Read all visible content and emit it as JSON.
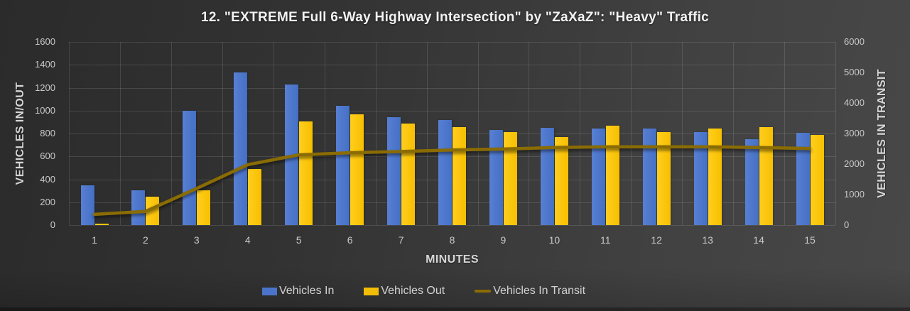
{
  "title": "12. \"EXTREME Full 6-Way Highway Intersection\" by \"ZaXaZ\": \"Heavy\" Traffic",
  "chart_data": {
    "type": "bar",
    "subtype": "combo-bar-line",
    "categories": [
      "1",
      "2",
      "3",
      "4",
      "5",
      "6",
      "7",
      "8",
      "9",
      "10",
      "11",
      "12",
      "13",
      "14",
      "15"
    ],
    "series": [
      {
        "name": "Vehicles In",
        "type": "bar",
        "axis": "left",
        "color": "#4a76cc",
        "values": [
          345,
          305,
          1000,
          1335,
          1230,
          1040,
          940,
          920,
          830,
          850,
          845,
          845,
          810,
          750,
          805
        ]
      },
      {
        "name": "Vehicles Out",
        "type": "bar",
        "axis": "left",
        "color": "#fcc605",
        "values": [
          10,
          250,
          305,
          490,
          905,
          965,
          890,
          855,
          815,
          770,
          870,
          810,
          845,
          855,
          785
        ]
      },
      {
        "name": "Vehicles In Transit",
        "type": "line",
        "axis": "right",
        "color": "#8a6c04",
        "values": [
          350,
          450,
          1200,
          1980,
          2300,
          2370,
          2410,
          2460,
          2490,
          2540,
          2565,
          2565,
          2565,
          2540,
          2510
        ]
      }
    ],
    "xlabel": "MINUTES",
    "ylabel_left": "VEHICLES IN/OUT",
    "ylabel_right": "VEHICLES IN TRANSIT",
    "ylim_left": [
      0,
      1600
    ],
    "ylim_right": [
      0,
      6000
    ],
    "left_ticks": [
      0,
      200,
      400,
      600,
      800,
      1000,
      1200,
      1400,
      1600
    ],
    "right_ticks": [
      0,
      1000,
      2000,
      3000,
      4000,
      5000,
      6000
    ],
    "grid": true,
    "legend_position": "bottom"
  },
  "colors": {
    "background_dark": "#2b2b2b",
    "background_light": "#484848",
    "gridline": "#4f4f4f",
    "tick_text": "#c9c9c9",
    "title_text": "#f2f2f2",
    "bar_blue": "#4a76cc",
    "bar_yellow": "#fcc605",
    "line_olive": "#8a6c04"
  }
}
